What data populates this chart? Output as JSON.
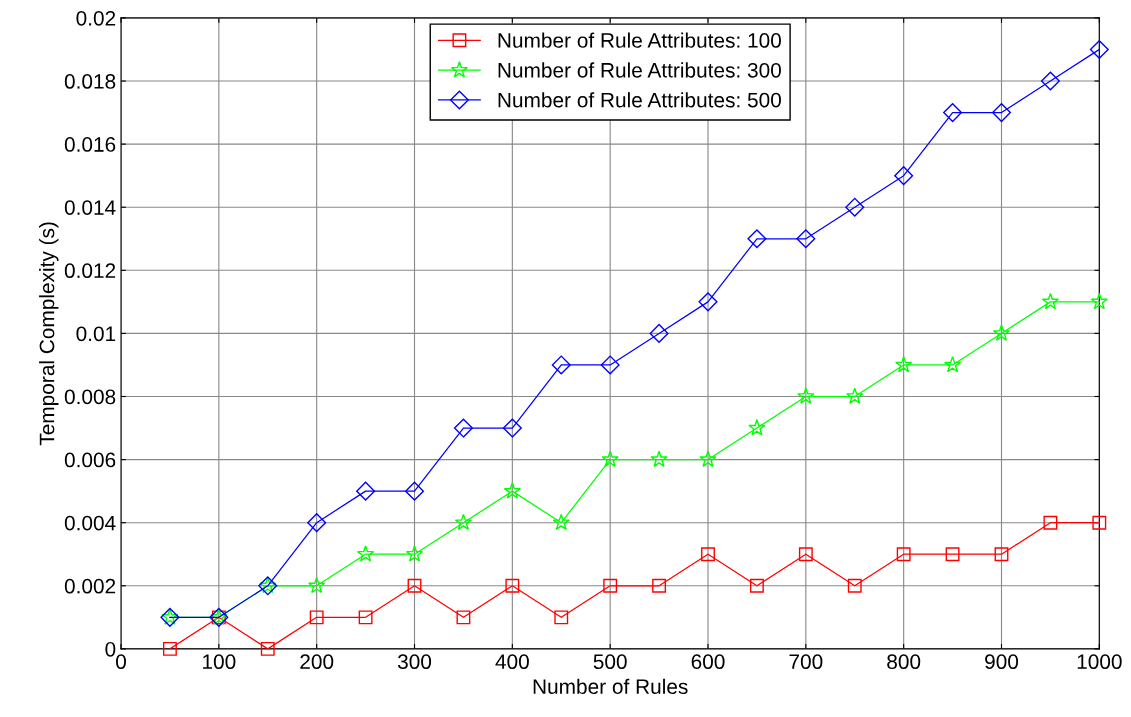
{
  "chart_data": {
    "type": "line",
    "xlabel": "Number of Rules",
    "ylabel": "Temporal Complexity (s)",
    "x": [
      50,
      100,
      150,
      200,
      250,
      300,
      350,
      400,
      450,
      500,
      550,
      600,
      650,
      700,
      750,
      800,
      850,
      900,
      950,
      1000
    ],
    "series": [
      {
        "name": "Number of Rule Attributes: 100",
        "color": "#ff0000",
        "marker": "square",
        "values": [
          0,
          0.001,
          0,
          0.001,
          0.001,
          0.002,
          0.001,
          0.002,
          0.001,
          0.002,
          0.002,
          0.003,
          0.002,
          0.003,
          0.002,
          0.003,
          0.003,
          0.003,
          0.004,
          0.004
        ]
      },
      {
        "name": "Number of Rule Attributes: 300",
        "color": "#00ff00",
        "marker": "star",
        "values": [
          0.001,
          0.001,
          0.002,
          0.002,
          0.003,
          0.003,
          0.004,
          0.005,
          0.004,
          0.006,
          0.006,
          0.006,
          0.007,
          0.008,
          0.008,
          0.009,
          0.009,
          0.01,
          0.011,
          0.011
        ]
      },
      {
        "name": "Number of Rule Attributes: 500",
        "color": "#0000ff",
        "marker": "diamond",
        "values": [
          0.001,
          0.001,
          0.002,
          0.004,
          0.005,
          0.005,
          0.007,
          0.007,
          0.009,
          0.009,
          0.01,
          0.011,
          0.013,
          0.013,
          0.014,
          0.015,
          0.017,
          0.017,
          0.018,
          0.019
        ]
      }
    ],
    "xlim": [
      0,
      1000
    ],
    "xticks": [
      0,
      100,
      200,
      300,
      400,
      500,
      600,
      700,
      800,
      900,
      1000
    ],
    "ylim": [
      0,
      0.02
    ],
    "yticks": [
      0,
      0.002,
      0.004,
      0.006,
      0.008,
      0.01,
      0.012,
      0.014,
      0.016,
      0.018,
      0.02
    ],
    "grid": true,
    "legend": "top",
    "line_style": "solid"
  }
}
